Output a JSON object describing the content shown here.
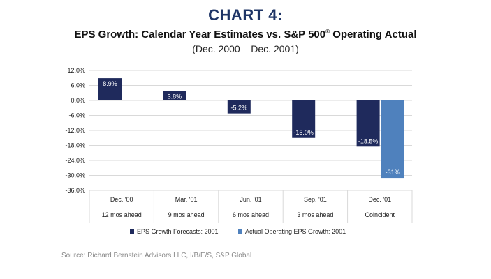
{
  "header": {
    "chart_number": "CHART 4:",
    "title_main": "EPS Growth: Calendar Year Estimates vs. S&P 500",
    "title_reg": "®",
    "title_end": " Operating Actual",
    "subtitle": "(Dec. 2000 – Dec. 2001)"
  },
  "source": "Source: Richard Bernstein Advisors LLC, I/B/E/S, S&P Global",
  "colors": {
    "forecast": "#1f2a5c",
    "actual": "#4f81bd",
    "grid": "#d9d9d9"
  },
  "chart_data": {
    "type": "bar",
    "title": "EPS Growth: Calendar Year Estimates vs. S&P 500® Operating Actual",
    "subtitle": "(Dec. 2000 – Dec. 2001)",
    "categories": [
      "Dec. '00",
      "Mar. '01",
      "Jun. '01",
      "Sep. '01",
      "Dec. '01"
    ],
    "sub_categories": [
      "12 mos ahead",
      "9 mos ahead",
      "6 mos ahead",
      "3 mos ahead",
      "Coincident"
    ],
    "series": [
      {
        "name": "EPS Growth Forecasts: 2001",
        "values": [
          8.9,
          3.8,
          -5.2,
          -15.0,
          -18.5
        ],
        "labels": [
          "8.9%",
          "3.8%",
          "-5.2%",
          "-15.0%",
          "-18.5%"
        ]
      },
      {
        "name": "Actual Operating EPS Growth: 2001",
        "values": [
          null,
          null,
          null,
          null,
          -31
        ],
        "labels": [
          null,
          null,
          null,
          null,
          "-31%"
        ]
      }
    ],
    "ylim": [
      -36,
      12
    ],
    "yticks": [
      12,
      6,
      0,
      -6,
      -12,
      -18,
      -24,
      -30,
      -36
    ],
    "ytick_labels": [
      "12.0%",
      "6.0%",
      "0.0%",
      "-6.0%",
      "-12.0%",
      "-18.0%",
      "-24.0%",
      "-30.0%",
      "-36.0%"
    ],
    "grid": true,
    "legend_position": "bottom"
  }
}
